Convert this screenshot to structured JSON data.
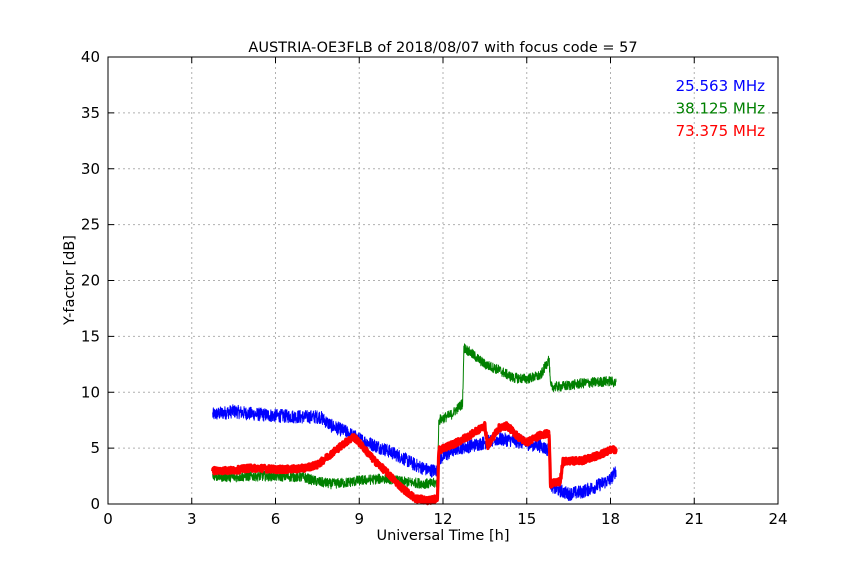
{
  "chart_data": {
    "type": "line",
    "title": "AUSTRIA-OE3FLB of 2018/08/07 with focus code = 57",
    "xlabel": "Universal Time [h]",
    "ylabel": "Y-factor [dB]",
    "xlim": [
      0,
      24
    ],
    "ylim": [
      0,
      40
    ],
    "xticks": [
      0,
      3,
      6,
      9,
      12,
      15,
      18,
      21,
      24
    ],
    "yticks": [
      0,
      5,
      10,
      15,
      20,
      25,
      30,
      35,
      40
    ],
    "grid": true,
    "legend_position": "top-right",
    "series": [
      {
        "name": "25.563 MHz",
        "color": "#0000ff",
        "noise": 0.6,
        "x": [
          3.75,
          4.5,
          5.0,
          6.0,
          7.0,
          7.6,
          8.0,
          8.5,
          9.0,
          9.5,
          10.0,
          10.5,
          11.0,
          11.5,
          11.8,
          11.85,
          12.5,
          13.0,
          13.5,
          14.0,
          14.5,
          15.0,
          15.5,
          15.8,
          15.85,
          16.0,
          16.5,
          17.0,
          17.5,
          18.0,
          18.2
        ],
        "y": [
          8.0,
          8.3,
          8.1,
          7.9,
          7.8,
          7.8,
          7.0,
          6.5,
          5.8,
          5.3,
          4.8,
          4.2,
          3.5,
          3.0,
          3.0,
          4.0,
          5.0,
          5.2,
          5.5,
          5.8,
          5.7,
          5.4,
          5.2,
          4.8,
          1.8,
          1.4,
          0.9,
          1.1,
          1.6,
          2.2,
          3.0
        ]
      },
      {
        "name": "38.125 MHz",
        "color": "#008000",
        "noise": 0.45,
        "x": [
          3.75,
          4.5,
          5.0,
          6.0,
          7.0,
          7.5,
          8.0,
          8.5,
          9.0,
          9.5,
          10.0,
          10.5,
          11.0,
          11.5,
          11.8,
          11.85,
          12.3,
          12.7,
          12.75,
          13.0,
          13.5,
          14.0,
          14.5,
          15.0,
          15.5,
          15.8,
          15.85,
          16.2,
          17.0,
          18.0,
          18.2
        ],
        "y": [
          2.5,
          2.4,
          2.5,
          2.5,
          2.4,
          2.0,
          1.8,
          1.9,
          2.1,
          2.2,
          2.3,
          2.0,
          1.9,
          1.8,
          1.9,
          7.5,
          8.0,
          9.0,
          14.0,
          13.5,
          12.5,
          12.0,
          11.3,
          11.2,
          11.5,
          13.0,
          10.5,
          10.5,
          10.8,
          11.0,
          10.8
        ]
      },
      {
        "name": "73.375 MHz",
        "color": "#ff0000",
        "noise": 0.3,
        "x": [
          3.75,
          4.5,
          5.0,
          5.5,
          6.0,
          6.5,
          7.0,
          7.5,
          8.0,
          8.5,
          8.8,
          9.0,
          9.5,
          10.0,
          10.5,
          11.0,
          11.5,
          11.8,
          11.85,
          12.5,
          13.0,
          13.5,
          13.6,
          14.0,
          14.3,
          14.7,
          15.0,
          15.5,
          15.8,
          15.85,
          16.2,
          16.3,
          17.0,
          17.5,
          18.0,
          18.2
        ],
        "y": [
          3.0,
          3.0,
          3.2,
          3.2,
          3.1,
          3.1,
          3.2,
          3.5,
          4.5,
          5.5,
          6.0,
          5.5,
          4.0,
          2.8,
          1.5,
          0.5,
          0.3,
          0.5,
          4.8,
          5.5,
          6.2,
          7.0,
          5.2,
          6.8,
          7.0,
          6.0,
          5.5,
          6.2,
          6.3,
          1.8,
          2.0,
          3.8,
          3.9,
          4.3,
          4.8,
          4.9
        ]
      }
    ]
  }
}
